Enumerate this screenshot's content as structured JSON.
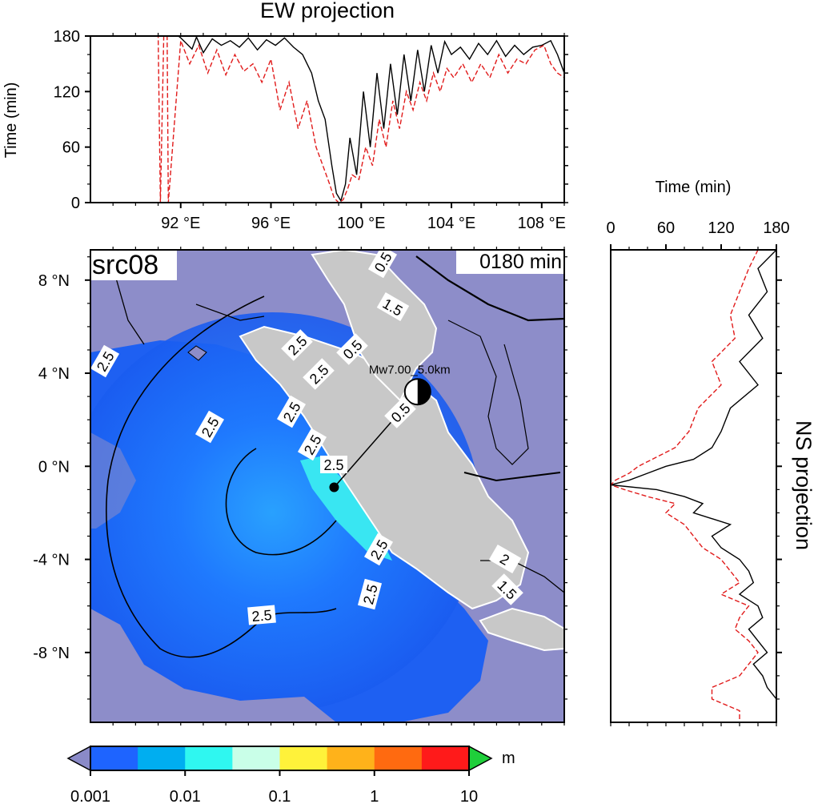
{
  "figure": {
    "source_label": "src08",
    "time_label": "0180 min",
    "event_label": "Mw7.00_5.0km"
  },
  "chart_data": [
    {
      "type": "line",
      "title": "EW projection",
      "ylabel": "Time (min)",
      "ylim": [
        0,
        180
      ],
      "yticks": [
        "0",
        "60",
        "120",
        "180"
      ],
      "xlim": [
        88.0,
        109.0
      ],
      "xticks": [
        "92 °E",
        "96 °E",
        "100 °E",
        "104 °E",
        "108 °E"
      ],
      "xtick_values": [
        92,
        96,
        100,
        104,
        108
      ],
      "series": [
        {
          "color": "#000000",
          "style": "solid",
          "x": [
            88.0,
            90.0,
            91.9,
            92.0,
            92.5,
            92.7,
            93.0,
            93.4,
            93.8,
            94.2,
            94.6,
            95.0,
            95.4,
            95.8,
            96.2,
            96.6,
            97.0,
            97.4,
            97.8,
            98.1,
            98.4,
            98.7,
            98.9,
            99.1,
            99.3,
            99.5,
            99.8,
            100.1,
            100.4,
            100.7,
            101.0,
            101.3,
            101.6,
            101.9,
            102.2,
            102.5,
            102.8,
            103.1,
            103.4,
            103.7,
            104.0,
            104.4,
            104.8,
            105.2,
            105.6,
            106.0,
            106.4,
            106.8,
            107.2,
            107.6,
            108.0,
            108.4,
            108.7,
            109.0
          ],
          "y": [
            180,
            180,
            180,
            178,
            166,
            179,
            162,
            177,
            170,
            175,
            168,
            178,
            165,
            176,
            170,
            178,
            168,
            160,
            140,
            110,
            90,
            40,
            10,
            2,
            20,
            70,
            30,
            120,
            60,
            140,
            80,
            150,
            95,
            160,
            110,
            165,
            120,
            170,
            140,
            174,
            160,
            168,
            155,
            172,
            160,
            175,
            158,
            170,
            160,
            168,
            170,
            175,
            160,
            140
          ]
        },
        {
          "color": "#e11b1b",
          "style": "dashed",
          "x": [
            88.0,
            91.0,
            91.1,
            91.25,
            91.4,
            91.45,
            92.0,
            92.4,
            92.8,
            93.2,
            93.6,
            94.0,
            94.4,
            94.8,
            95.2,
            95.6,
            96.0,
            96.4,
            96.8,
            97.2,
            97.6,
            98.0,
            98.3,
            98.6,
            98.8,
            99.0,
            99.2,
            99.4,
            99.6,
            99.9,
            100.2,
            100.5,
            100.8,
            101.1,
            101.4,
            101.7,
            102.0,
            102.3,
            102.6,
            102.9,
            103.2,
            103.5,
            103.8,
            104.1,
            104.5,
            104.9,
            105.3,
            105.7,
            106.1,
            106.5,
            106.9,
            107.3,
            107.7,
            108.1,
            108.4,
            108.7,
            109.0
          ],
          "y": [
            180,
            180,
            0,
            180,
            180,
            0,
            175,
            150,
            170,
            140,
            165,
            138,
            160,
            142,
            150,
            130,
            155,
            100,
            130,
            80,
            110,
            60,
            40,
            20,
            5,
            0,
            3,
            15,
            30,
            25,
            60,
            40,
            90,
            60,
            110,
            80,
            120,
            100,
            130,
            110,
            140,
            120,
            145,
            135,
            150,
            130,
            150,
            135,
            160,
            140,
            155,
            150,
            165,
            170,
            150,
            140,
            135
          ]
        }
      ]
    },
    {
      "type": "line",
      "title": "NS projection",
      "xlabel": "Time (min)",
      "xlim": [
        0,
        180
      ],
      "xticks": [
        "0",
        "60",
        "120",
        "180"
      ],
      "ylim": [
        -11.0,
        9.3
      ],
      "yticks": [
        "8 °N",
        "4 °N",
        "0 °N",
        "-4 °N",
        "-8 °N"
      ],
      "ytick_values": [
        8,
        4,
        0,
        -4,
        -8
      ],
      "series": [
        {
          "color": "#000000",
          "style": "solid",
          "lat": [
            9.3,
            8.5,
            7.5,
            6.5,
            5.5,
            4.5,
            3.5,
            2.5,
            1.5,
            0.8,
            0.3,
            0.0,
            -0.3,
            -0.6,
            -0.8,
            -1.0,
            -1.3,
            -1.6,
            -2.0,
            -2.5,
            -3.0,
            -3.5,
            -4.0,
            -4.5,
            -5.0,
            -5.5,
            -6.0,
            -6.5,
            -7.0,
            -7.5,
            -8.0,
            -8.5,
            -9.0,
            -9.5,
            -10.0,
            -10.5,
            -11.0
          ],
          "time": [
            180,
            160,
            170,
            150,
            165,
            140,
            160,
            130,
            120,
            110,
            90,
            60,
            40,
            20,
            0,
            50,
            80,
            100,
            90,
            130,
            110,
            120,
            140,
            150,
            155,
            140,
            160,
            165,
            150,
            160,
            170,
            155,
            165,
            170,
            180,
            180,
            180
          ]
        },
        {
          "color": "#e11b1b",
          "style": "dashed",
          "lat": [
            9.3,
            8.5,
            7.5,
            6.5,
            5.5,
            4.5,
            3.5,
            2.5,
            1.5,
            0.8,
            0.3,
            0.0,
            -0.3,
            -0.6,
            -0.8,
            -1.0,
            -1.3,
            -1.6,
            -2.0,
            -2.5,
            -3.0,
            -3.5,
            -4.0,
            -4.5,
            -5.0,
            -5.5,
            -6.0,
            -6.5,
            -7.0,
            -7.5,
            -8.0,
            -8.5,
            -9.0,
            -9.5,
            -10.0,
            -10.5,
            -11.0
          ],
          "time": [
            160,
            150,
            140,
            130,
            135,
            110,
            120,
            95,
            85,
            70,
            45,
            30,
            20,
            5,
            0,
            15,
            40,
            70,
            60,
            80,
            90,
            100,
            120,
            130,
            140,
            120,
            150,
            140,
            135,
            150,
            160,
            150,
            140,
            110,
            110,
            140,
            140
          ]
        }
      ]
    },
    {
      "type": "heatmap",
      "map_extent": {
        "lon": [
          88.0,
          109.0
        ],
        "lat": [
          -11.0,
          9.3
        ]
      },
      "xticks": [
        "92 °E",
        "96 °E",
        "100 °E",
        "104 °E",
        "108 °E"
      ],
      "xtick_values": [
        92,
        96,
        100,
        104,
        108
      ],
      "yticks": [
        "8 °N",
        "4 °N",
        "0 °N",
        "-4 °N",
        "-8 °N"
      ],
      "ytick_values": [
        8,
        4,
        0,
        -4,
        -8
      ],
      "epicenter": {
        "lon": 98.8,
        "lat": -0.9
      },
      "beachball": {
        "lon": 102.5,
        "lat": 3.2
      },
      "contour_labels": [
        "2.5",
        "2.5",
        "2.5",
        "2.5",
        "2.5",
        "2.5",
        "2.5",
        "2.5",
        "2",
        "1.5",
        "0.5",
        "0.5",
        "0.5",
        "2.5",
        "1.5",
        "2.5"
      ],
      "colorbar": {
        "unit": "m",
        "tick_labels": [
          "0.001",
          "0.01",
          "0.1",
          "1",
          "10"
        ],
        "colors": [
          "#1e64ff",
          "#00aef0",
          "#2ff7f0",
          "#c9ffe8",
          "#fff23a",
          "#ffb21a",
          "#ff6a10",
          "#ff1a1a"
        ],
        "under_color": "#8a8ac8",
        "over_color": "#1fcf3a"
      },
      "ocean_color": "#8d8dc9",
      "land_color": "#c8c8c8"
    }
  ]
}
